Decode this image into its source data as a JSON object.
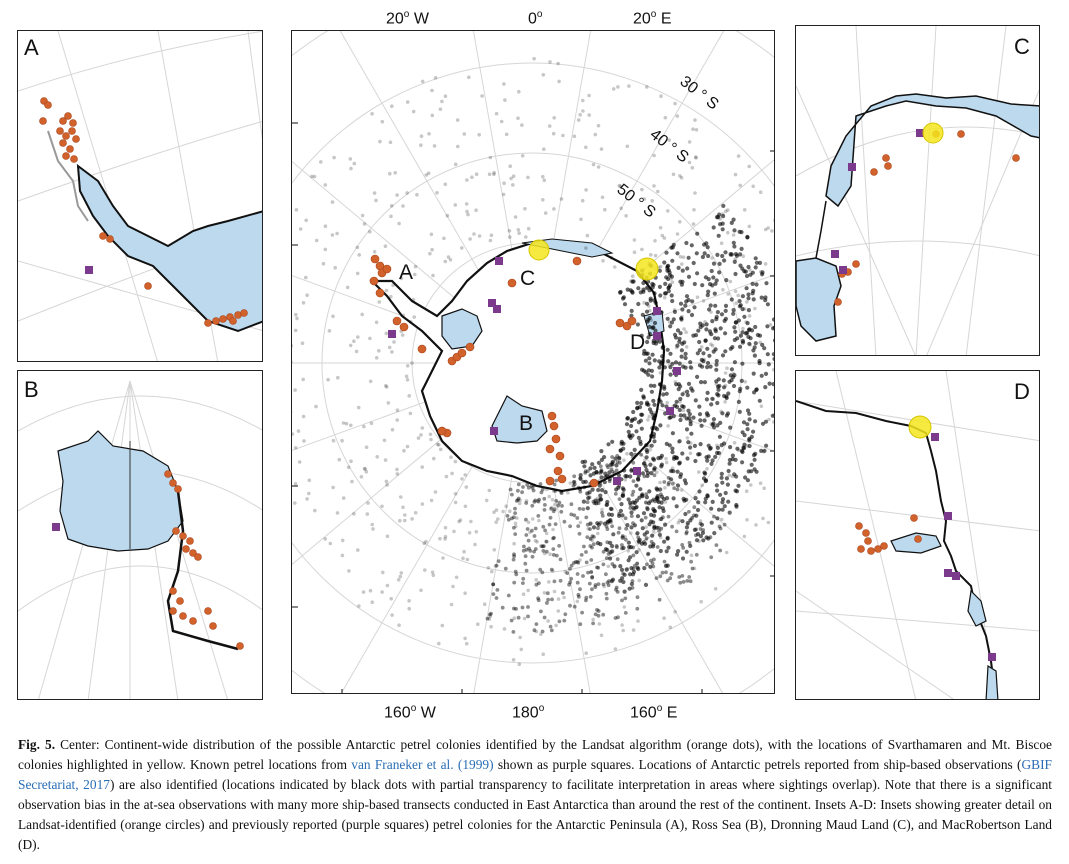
{
  "map": {
    "lon_labels_top": [
      {
        "label": "20",
        "dir": "W"
      },
      {
        "label": "0",
        "dir": ""
      },
      {
        "label": "20",
        "dir": "E"
      }
    ],
    "lon_labels_bottom": [
      {
        "label": "160",
        "dir": "W"
      },
      {
        "label": "180",
        "dir": ""
      },
      {
        "label": "160",
        "dir": "E"
      }
    ],
    "lat_labels": [
      "30 ° S",
      "40 ° S",
      "50 ° S"
    ],
    "region_labels": [
      "A",
      "B",
      "C",
      "D"
    ]
  },
  "insets": [
    {
      "label": "A"
    },
    {
      "label": "B"
    },
    {
      "label": "C"
    },
    {
      "label": "D"
    }
  ],
  "legend_colors": {
    "landsat_colony": "#d2622b",
    "highlighted_colony": "#f5e61e",
    "known_location": "#7b3a8c",
    "ship_observation": "#000000",
    "land": "#bcd9ee"
  },
  "caption": {
    "fig_label": "Fig. 5.",
    "text_1": " Center: Continent-wide distribution of the possible Antarctic petrel colonies identified by the Landsat algorithm (orange dots), with the locations of Svarthamaren and Mt. Biscoe colonies highlighted in yellow. Known petrel locations from ",
    "link_1": "van Franeker et al. (1999)",
    "text_2": " shown as purple squares. Locations of Antarctic petrels reported from ship-based observations (",
    "link_2": "GBIF Secretariat, 2017",
    "text_3": ") are also identified (locations indicated by black dots with partial transparency to facilitate interpretation in areas where sightings overlap). Note that there is a significant observation bias in the at-sea observations with many more ship-based transects conducted in East Antarctica than around the rest of the continent. Insets A-D: Insets showing greater detail on Landsat-identified (orange circles) and previously reported (purple squares) petrel colonies for the Antarctic Peninsula (A), Ross Sea (B), Dronning Maud Land (C), and MacRobertson Land (D)."
  }
}
